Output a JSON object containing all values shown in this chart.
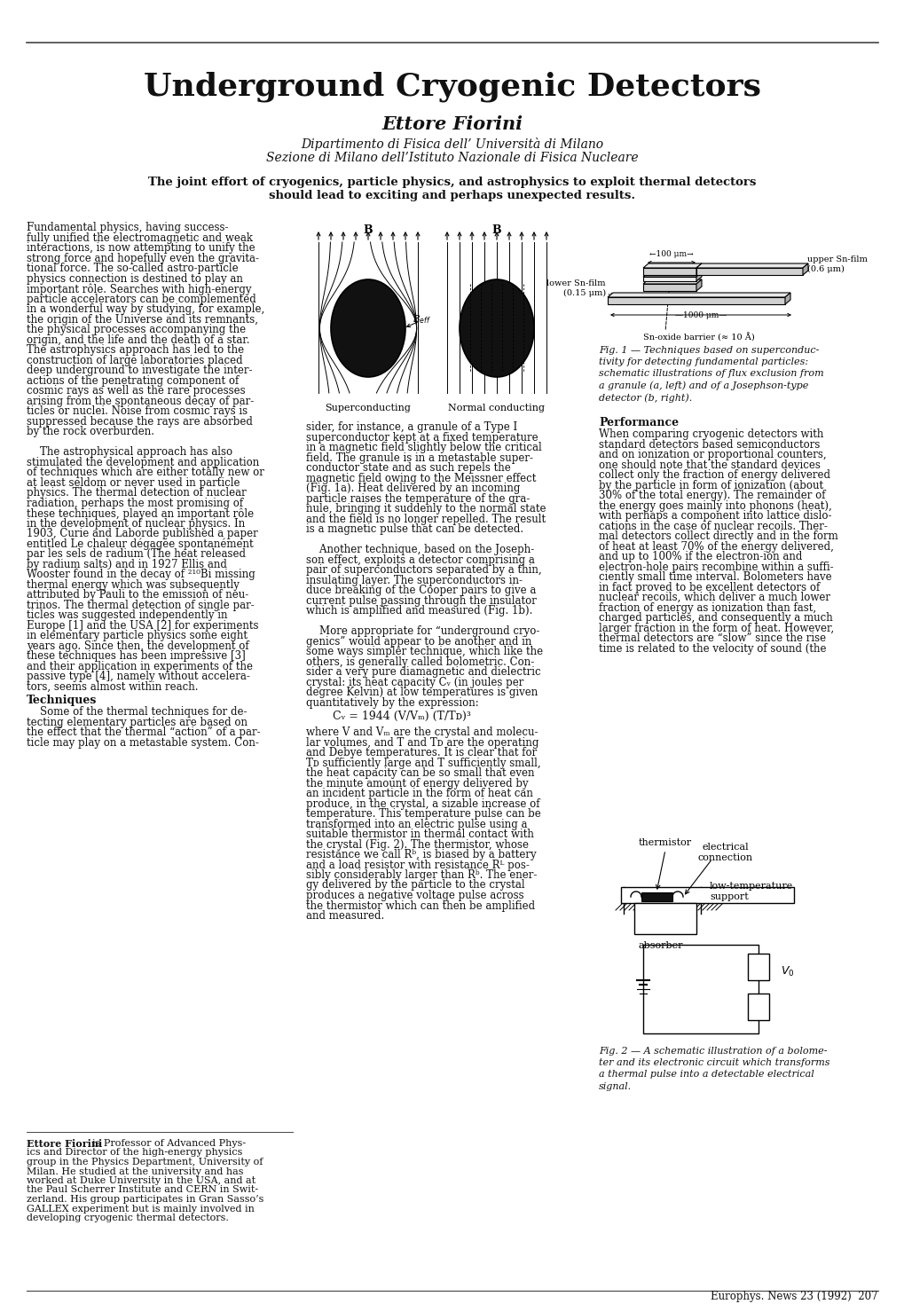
{
  "title": "Underground Cryogenic Detectors",
  "author": "Ettore Fiorini",
  "affil1": "Dipartimento di Fisica dell’ Università di Milano",
  "affil2": "Sezione di Milano dell’Istituto Nazionale di Fisica Nucleare",
  "tagline1": "The joint effort of cryogenics, particle physics, and astrophysics to exploit thermal detectors",
  "tagline2": "should lead to exciting and perhaps unexpected results.",
  "fig1_caption": "Fig. 1 — Techniques based on superconduc-\ntivity for detecting fundamental particles:\nschematic illustrations of flux exclusion from\na granule (a, left) and of a Josephson-type\ndetector (b, right).",
  "fig2_caption": "Fig. 2 — A schematic illustration of a bolome-\nter and its electronic circuit which transforms\na thermal pulse into a detectable electrical\nsignal.",
  "footer": "Europhys. News 23 (1992)  207",
  "bg_color": "#ffffff",
  "text_color": "#000000",
  "col1_lines": [
    "Fundamental physics, having success-",
    "fully unified the electromagnetic and weak",
    "interactions, is now attempting to unify the",
    "strong force and hopefully even the gravita-",
    "tional force. The so-called astro-particle",
    "physics connection is destined to play an",
    "important rôle. Searches with high-energy",
    "particle accelerators can be complemented",
    "in a wonderful way by studying, for example,",
    "the origin of the Universe and its remnants,",
    "the physical processes accompanying the",
    "origin, and the life and the death of a star.",
    "The astrophysics approach has led to the",
    "construction of large laboratories placed",
    "deep underground to investigate the inter-",
    "actions of the penetrating component of",
    "cosmic rays as well as the rare processes",
    "arising from the spontaneous decay of par-",
    "ticles or nuclei. Noise from cosmic rays is",
    "suppressed because the rays are absorbed",
    "by the rock overburden.",
    "",
    "    The astrophysical approach has also",
    "stimulated the development and application",
    "of techniques which are either totally new or",
    "at least seldom or never used in particle",
    "physics. The thermal detection of nuclear",
    "radiation, perhaps the most promising of",
    "these techniques, played an important rôle",
    "in the development of nuclear physics. In",
    "1903, Curie and Laborde published a paper",
    "entitled Le chaleur dégagée spontanément",
    "par les sels de radium (The heat released",
    "by radium salts) and in 1927 Ellis and",
    "Wooster found in the decay of ²¹⁰Bi missing",
    "thermal energy which was subsequently",
    "attributed by Pauli to the emission of neu-",
    "trinos. The thermal detection of single par-",
    "ticles was suggested independently in",
    "Europe [1] and the USA [2] for experiments",
    "in elementary particle physics some eight",
    "years ago. Since then, the development of",
    "these techniques has been impressive [3]",
    "and their application in experiments of the",
    "passive type [4], namely without accelera-",
    "tors, seems almost within reach."
  ],
  "col1_techniques_lines": [
    "    Some of the thermal techniques for de-",
    "tecting elementary particles are based on",
    "the effect that the thermal “action” of a par-",
    "ticle may play on a metastable system. Con-"
  ],
  "col2_lines": [
    "sider, for instance, a granule of a Type I",
    "superconductor kept at a fixed temperature",
    "in a magnetic field slightly below the critical",
    "field. The granule is in a metastable super-",
    "conductor state and as such repels the",
    "magnetic field owing to the Meissner effect",
    "(Fig. 1a). Heat delivered by an incoming",
    "particle raises the temperature of the gra-",
    "nule, bringing it suddenly to the normal state",
    "and the field is no longer repelled. The result",
    "is a magnetic pulse that can be detected.",
    "",
    "    Another technique, based on the Joseph-",
    "son effect, exploits a detector comprising a",
    "pair of superconductors separated by a thin,",
    "insulating layer. The superconductors in-",
    "duce breaking of the Cooper pairs to give a",
    "current pulse passing through the insulator",
    "which is amplified and measured (Fig. 1b).",
    "",
    "    More appropriate for “underground cryo-",
    "genics” would appear to be another and in",
    "some ways simpler technique, which like the",
    "others, is generally called bolometric. Con-",
    "sider a very pure diamagnetic and dielectric",
    "crystal: its heat capacity Cᵥ (in joules per",
    "degree Kelvin) at low temperatures is given",
    "quantitatively by the expression:"
  ],
  "col2_formula": "Cᵥ = 1944 (V/Vₘ) (T/Tᴅ)³",
  "col2_after_formula": [
    "where V and Vₘ are the crystal and molecu-",
    "lar volumes, and T and Tᴅ are the operating",
    "and Debye temperatures. It is clear that for",
    "Tᴅ sufficiently large and T sufficiently small,",
    "the heat capacity can be so small that even",
    "the minute amount of energy delivered by",
    "an incident particle in the form of heat can",
    "produce, in the crystal, a sizable increase of",
    "temperature. This temperature pulse can be",
    "transformed into an electric pulse using a",
    "suitable thermistor in thermal contact with",
    "the crystal (Fig. 2). The thermistor, whose",
    "resistance we call Rᵇ, is biased by a battery",
    "and a load resistor with resistance Rᴸ pos-",
    "sibly considerably larger than Rᵇ. The ener-",
    "gy delivered by the particle to the crystal",
    "produces a negative voltage pulse across",
    "the thermistor which can then be amplified",
    "and measured."
  ],
  "col3_perf_lines": [
    "When comparing cryogenic detectors with",
    "standard detectors based semiconductors",
    "and on ionization or proportional counters,",
    "one should note that the standard devices",
    "collect only the fraction of energy delivered",
    "by the particle in form of ionization (about",
    "30% of the total energy). The remainder of",
    "the energy goes mainly into phonons (heat),",
    "with perhaps a component into lattice dislo-",
    "cations in the case of nuclear recoils. Ther-",
    "mal detectors collect directly and in the form",
    "of heat at least 70% of the energy delivered,",
    "and up to 100% if the electron-ion and",
    "electron-hole pairs recombine within a suffi-",
    "ciently small time interval. Bolometers have",
    "in fact proved to be excellent detectors of",
    "nuclear recoils, which deliver a much lower",
    "fraction of energy as ionization than fast,",
    "charged particles, and consequently a much",
    "larger fraction in the form of heat. However,",
    "thermal detectors are “slow” since the rise",
    "time is related to the velocity of sound (the"
  ],
  "bio_lines": [
    "Ettore Fiorini is Professor of Advanced Phys-",
    "ics and Director of the high-energy physics",
    "group in the Physics Department, University of",
    "Milan. He studied at the university and has",
    "worked at Duke University in the USA, and at",
    "the Paul Scherrer Institute and CERN in Swit-",
    "zerland. His group participates in Gran Sasso’s",
    "GALLEX experiment but is mainly involved in",
    "developing cryogenic thermal detectors."
  ]
}
